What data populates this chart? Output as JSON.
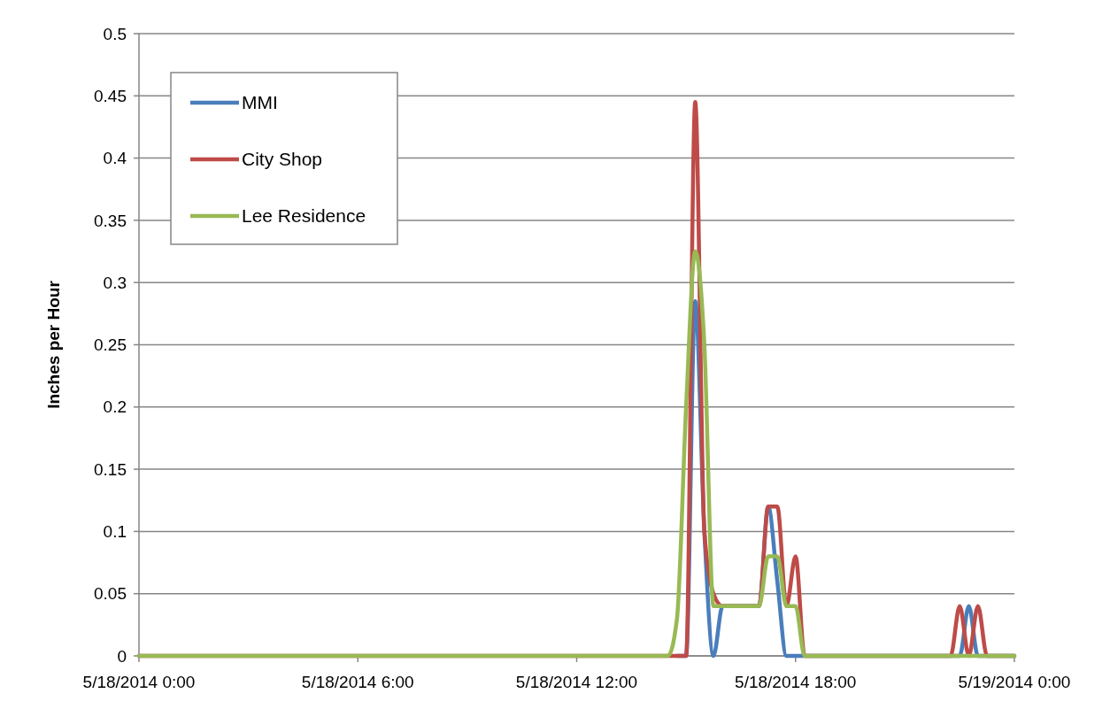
{
  "chart_data": {
    "type": "line",
    "ylabel": "Inches per Hour",
    "xlim": [
      "2014-05-18T00:00",
      "2014-05-19T00:00"
    ],
    "xticks": [
      {
        "value": "2014-05-18T00:00",
        "label": "5/18/2014 0:00"
      },
      {
        "value": "2014-05-18T06:00",
        "label": "5/18/2014 6:00"
      },
      {
        "value": "2014-05-18T12:00",
        "label": "5/18/2014 12:00"
      },
      {
        "value": "2014-05-18T18:00",
        "label": "5/18/2014 18:00"
      },
      {
        "value": "2014-05-19T00:00",
        "label": "5/19/2014 0:00"
      }
    ],
    "ylim": [
      0,
      0.5
    ],
    "yticks": [
      0,
      0.05,
      0.1,
      0.15,
      0.2,
      0.25,
      0.3,
      0.35,
      0.4,
      0.45,
      0.5
    ],
    "grid": "y",
    "legend": "top left",
    "marker": "none",
    "line_style": "solid",
    "series": [
      {
        "name": "MMI",
        "color": "#4a7ebb",
        "x": [
          "2014-05-18T14:45",
          "2014-05-18T15:00",
          "2014-05-18T15:15",
          "2014-05-18T15:30",
          "2014-05-18T15:45",
          "2014-05-18T16:00",
          "2014-05-18T16:15",
          "2014-05-18T16:30",
          "2014-05-18T16:45",
          "2014-05-18T17:00",
          "2014-05-18T17:15",
          "2014-05-18T17:30",
          "2014-05-18T17:45",
          "2014-05-18T18:00",
          "2014-05-18T18:15",
          "2014-05-18T22:30",
          "2014-05-18T22:45",
          "2014-05-18T23:00",
          "2014-05-19T00:00"
        ],
        "values": [
          0,
          0,
          0.285,
          0.1,
          0,
          0.04,
          0.04,
          0.04,
          0.04,
          0.04,
          0.12,
          0.06,
          0,
          0,
          0,
          0,
          0.04,
          0,
          0
        ]
      },
      {
        "name": "City Shop",
        "color": "#be4b48",
        "x": [
          "2014-05-18T00:00",
          "2014-05-18T14:30",
          "2014-05-18T14:45",
          "2014-05-18T15:00",
          "2014-05-18T15:15",
          "2014-05-18T15:30",
          "2014-05-18T15:45",
          "2014-05-18T16:00",
          "2014-05-18T16:15",
          "2014-05-18T16:30",
          "2014-05-18T16:45",
          "2014-05-18T17:00",
          "2014-05-18T17:15",
          "2014-05-18T17:30",
          "2014-05-18T17:45",
          "2014-05-18T18:00",
          "2014-05-18T18:15",
          "2014-05-18T22:15",
          "2014-05-18T22:30",
          "2014-05-18T22:45",
          "2014-05-18T23:00",
          "2014-05-18T23:15",
          "2014-05-19T00:00"
        ],
        "values": [
          0,
          0,
          0,
          0,
          0.445,
          0.1,
          0.05,
          0.04,
          0.04,
          0.04,
          0.04,
          0.04,
          0.12,
          0.12,
          0.04,
          0.08,
          0,
          0,
          0.04,
          0,
          0.04,
          0,
          0
        ]
      },
      {
        "name": "Lee Residence",
        "color": "#98b954",
        "x": [
          "2014-05-18T00:00",
          "2014-05-18T14:30",
          "2014-05-18T14:45",
          "2014-05-18T15:00",
          "2014-05-18T15:15",
          "2014-05-18T15:30",
          "2014-05-18T15:45",
          "2014-05-18T16:00",
          "2014-05-18T16:15",
          "2014-05-18T16:30",
          "2014-05-18T16:45",
          "2014-05-18T17:00",
          "2014-05-18T17:15",
          "2014-05-18T17:30",
          "2014-05-18T17:45",
          "2014-05-18T18:00",
          "2014-05-18T18:15",
          "2014-05-19T00:00"
        ],
        "values": [
          0,
          0,
          0.03,
          0.2,
          0.325,
          0.25,
          0.04,
          0.04,
          0.04,
          0.04,
          0.04,
          0.04,
          0.08,
          0.08,
          0.04,
          0.04,
          0,
          0
        ]
      }
    ]
  }
}
